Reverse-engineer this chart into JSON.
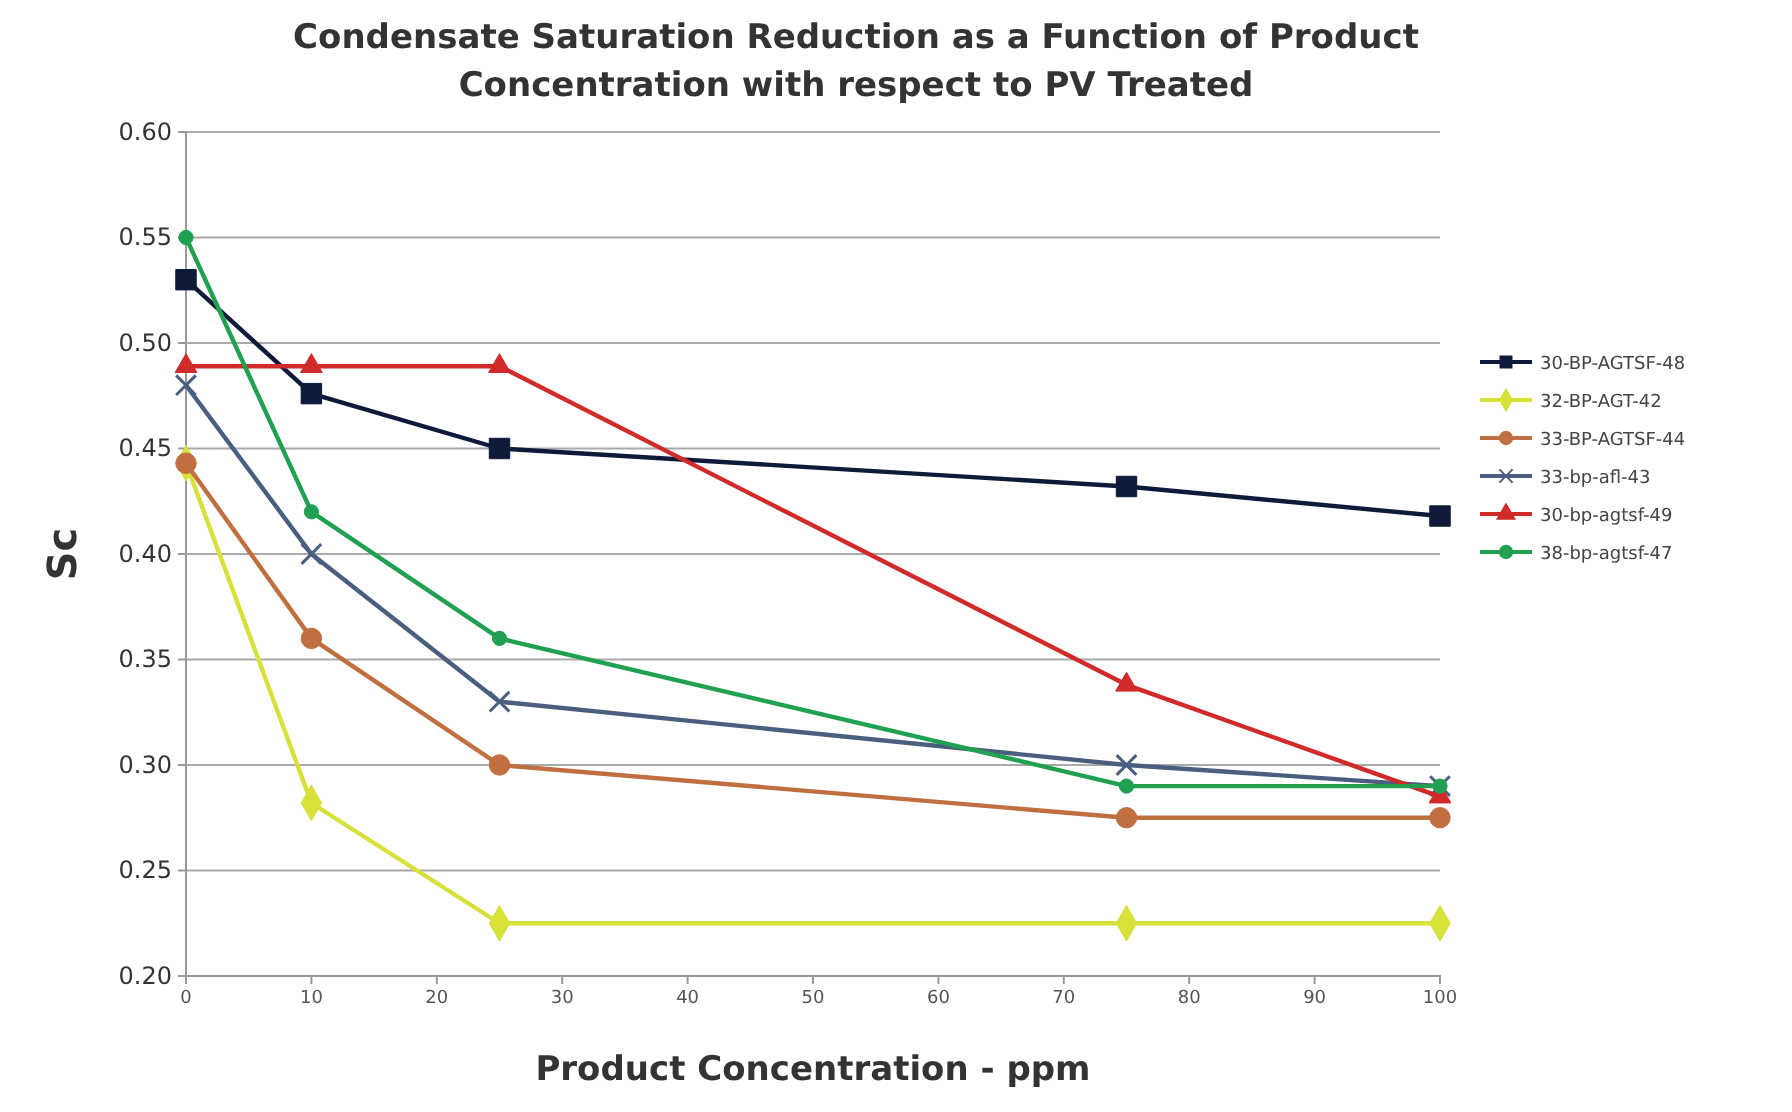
{
  "chart_data": {
    "type": "line",
    "title": "Condensate Saturation Reduction as a Function of Product Concentration with respect to PV Treated",
    "xlabel": "Product Concentration - ppm",
    "ylabel": "Sc",
    "x": [
      0,
      10,
      25,
      75,
      100
    ],
    "series": [
      {
        "name": "30-BP-AGTSF-48",
        "color": "#0d1a3a",
        "marker": "square",
        "values": [
          0.53,
          0.476,
          0.45,
          0.432,
          0.418
        ]
      },
      {
        "name": "32-BP-AGT-42",
        "color": "#d8e03a",
        "marker": "diamond",
        "values": [
          0.443,
          0.282,
          0.225,
          0.225,
          0.225
        ]
      },
      {
        "name": "33-BP-AGTSF-44",
        "color": "#c07040",
        "marker": "circle",
        "values": [
          0.443,
          0.36,
          0.3,
          0.275,
          0.275
        ]
      },
      {
        "name": "33-bp-afl-43",
        "color": "#4a5f80",
        "marker": "cross",
        "values": [
          0.48,
          0.4,
          0.33,
          0.3,
          0.29
        ]
      },
      {
        "name": "30-bp-agtsf-49",
        "color": "#d02a2a",
        "marker": "triangle",
        "values": [
          0.489,
          0.489,
          0.489,
          0.338,
          0.285
        ]
      },
      {
        "name": "38-bp-agtsf-47",
        "color": "#20a050",
        "marker": "circle",
        "values": [
          0.55,
          0.42,
          0.36,
          0.29,
          0.29
        ]
      }
    ],
    "xlim": [
      0,
      100
    ],
    "xticks": [
      0,
      10,
      20,
      30,
      40,
      50,
      60,
      70,
      80,
      90,
      100
    ],
    "ylim": [
      0.2,
      0.6
    ],
    "yticks": [
      {
        "value": 0.2,
        "label": "0.20"
      },
      {
        "value": 0.25,
        "label": "0.25"
      },
      {
        "value": 0.3,
        "label": "0.30"
      },
      {
        "value": 0.35,
        "label": "0.35"
      },
      {
        "value": 0.4,
        "label": "0.40"
      },
      {
        "value": 0.45,
        "label": "0.45"
      },
      {
        "value": 0.5,
        "label": "0.50"
      },
      {
        "value": 0.55,
        "label": "0.55"
      },
      {
        "value": 0.6,
        "label": "0.60"
      }
    ],
    "grid": "y",
    "legend": "right",
    "line_style": "solid"
  }
}
